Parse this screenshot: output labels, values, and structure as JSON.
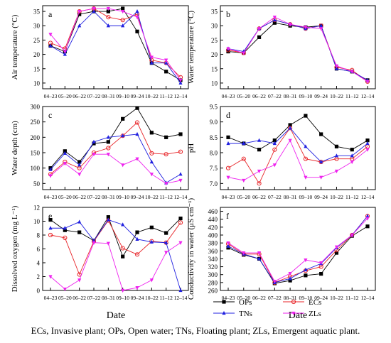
{
  "caption": "ECs, Invasive plant; OPs, Open water; TNs, Floating plant; ZLs, Emergent aquatic plant.",
  "shared_xlabel": "Date",
  "legend": {
    "placement": "bottom-center",
    "items": [
      {
        "name": "OPs",
        "color": "#000000",
        "marker": "square"
      },
      {
        "name": "ECs",
        "color": "#e8262a",
        "marker": "circle"
      },
      {
        "name": "TNs",
        "color": "#2020e0",
        "marker": "triangle"
      },
      {
        "name": "ZLs",
        "color": "#ee22ee",
        "marker": "triangle-down"
      }
    ]
  },
  "chart_data": [
    {
      "type": "line",
      "panel": "a",
      "ylabel": "Air temperature (°C)",
      "ylim": [
        8,
        37
      ],
      "yticks": [
        10,
        15,
        20,
        25,
        30,
        35
      ],
      "categories": [
        "04–23",
        "05–20",
        "06–22",
        "07–22",
        "08–31",
        "09–10",
        "09–24",
        "10–22",
        "11–12",
        "12–14"
      ],
      "series": [
        {
          "name": "OPs",
          "values": [
            23,
            21,
            34,
            35,
            35,
            36,
            28,
            17,
            14,
            11
          ]
        },
        {
          "name": "ECs",
          "values": [
            24,
            22,
            35,
            36,
            33,
            32,
            34,
            18,
            17,
            12
          ]
        },
        {
          "name": "TNs",
          "values": [
            23,
            20,
            30,
            35,
            30,
            30,
            35,
            17,
            17,
            10
          ]
        },
        {
          "name": "ZLs",
          "values": [
            27,
            21,
            35,
            36,
            36,
            35,
            33,
            19,
            18,
            11
          ]
        }
      ]
    },
    {
      "type": "line",
      "panel": "b",
      "ylabel": "Water temperature (°C)",
      "ylim": [
        8,
        37
      ],
      "yticks": [
        10,
        15,
        20,
        25,
        30,
        35
      ],
      "categories": [
        "04–23",
        "05–20",
        "06–22",
        "07–22",
        "08–31",
        "09–10",
        "09–24",
        "10–22",
        "11–12",
        "12–14"
      ],
      "series": [
        {
          "name": "OPs",
          "values": [
            21,
            20.5,
            26,
            31,
            30,
            29.5,
            30,
            15,
            14,
            11
          ]
        },
        {
          "name": "ECs",
          "values": [
            21.5,
            20.5,
            29,
            32,
            30.5,
            29,
            30,
            15.5,
            14.5,
            10.5
          ]
        },
        {
          "name": "TNs",
          "values": [
            22,
            21,
            29,
            32,
            30.5,
            29,
            30,
            15,
            14,
            11
          ]
        },
        {
          "name": "ZLs",
          "values": [
            22,
            20.5,
            29,
            33,
            30.5,
            29.5,
            29,
            16,
            14,
            10.5
          ]
        }
      ]
    },
    {
      "type": "line",
      "panel": "c",
      "ylabel": "Water depth (cm)",
      "ylim": [
        30,
        300
      ],
      "yticks": [
        50,
        100,
        150,
        200,
        250,
        300
      ],
      "categories": [
        "04–23",
        "05–20",
        "06–22",
        "07–22",
        "08–31",
        "09–10",
        "09–24",
        "10–22",
        "11–12",
        "12–14"
      ],
      "series": [
        {
          "name": "OPs",
          "values": [
            100,
            155,
            120,
            180,
            185,
            260,
            295,
            215,
            200,
            210
          ]
        },
        {
          "name": "ECs",
          "values": [
            80,
            120,
            100,
            150,
            165,
            205,
            248,
            148,
            145,
            153
          ]
        },
        {
          "name": "TNs",
          "values": [
            95,
            148,
            110,
            185,
            200,
            205,
            210,
            120,
            52,
            80
          ]
        },
        {
          "name": "ZLs",
          "values": [
            75,
            115,
            80,
            145,
            145,
            110,
            130,
            80,
            50,
            60
          ]
        }
      ]
    },
    {
      "type": "line",
      "panel": "d",
      "ylabel": "pH",
      "ylim": [
        6.8,
        9.5
      ],
      "yticks": [
        7.0,
        7.5,
        8.0,
        8.5,
        9.0,
        9.5
      ],
      "categories": [
        "04–23",
        "05–20",
        "06–22",
        "07–22",
        "08–31",
        "09–10",
        "09–24",
        "10–22",
        "11–12",
        "12–14"
      ],
      "series": [
        {
          "name": "OPs",
          "values": [
            8.5,
            8.3,
            8.1,
            8.4,
            8.9,
            9.2,
            8.6,
            8.2,
            8.1,
            8.4
          ]
        },
        {
          "name": "ECs",
          "values": [
            7.5,
            7.8,
            7.0,
            8.1,
            8.8,
            7.8,
            7.7,
            7.8,
            7.8,
            8.2
          ]
        },
        {
          "name": "TNs",
          "values": [
            8.3,
            8.3,
            8.4,
            8.3,
            8.8,
            8.2,
            7.7,
            7.9,
            7.9,
            8.3
          ]
        },
        {
          "name": "ZLs",
          "values": [
            7.2,
            7.1,
            7.4,
            7.6,
            8.4,
            7.2,
            7.2,
            7.4,
            7.7,
            8.1
          ]
        }
      ]
    },
    {
      "type": "line",
      "panel": "e",
      "ylabel": "Dissolved oxygen (mg L⁻¹)",
      "ylim": [
        0,
        12
      ],
      "yticks": [
        0,
        2,
        4,
        6,
        8,
        10,
        12
      ],
      "categories": [
        "04–23",
        "05–20",
        "06–22",
        "07–22",
        "08–31",
        "09–10",
        "09–24",
        "10–22",
        "11–12",
        "12–14"
      ],
      "series": [
        {
          "name": "OPs",
          "values": [
            10.2,
            8.7,
            8.4,
            7.2,
            10.6,
            4.9,
            8.4,
            9.1,
            8.3,
            10.4
          ]
        },
        {
          "name": "ECs",
          "values": [
            8.0,
            7.6,
            2.3,
            7.1,
            10.1,
            6.1,
            5.2,
            7.1,
            6.9,
            9.8
          ]
        },
        {
          "name": "TNs",
          "values": [
            9.0,
            9.0,
            9.9,
            7.2,
            10.2,
            9.5,
            7.4,
            7.0,
            6.9,
            0.0
          ]
        },
        {
          "name": "ZLs",
          "values": [
            2.0,
            0.2,
            1.5,
            6.9,
            6.8,
            0.0,
            0.4,
            1.5,
            5.5,
            6.9
          ]
        }
      ]
    },
    {
      "type": "line",
      "panel": "f",
      "ylabel": "Conductivity in water (μS cm⁻¹)",
      "ylim": [
        260,
        470
      ],
      "yticks": [
        260,
        280,
        300,
        320,
        340,
        360,
        380,
        400,
        420,
        440,
        460
      ],
      "categories": [
        "04–23",
        "05–20",
        "06–22",
        "07–22",
        "08–31",
        "09–10",
        "09–24",
        "10–22",
        "11–12",
        "12–14"
      ],
      "series": [
        {
          "name": "OPs",
          "values": [
            368,
            350,
            340,
            278,
            285,
            298,
            302,
            355,
            398,
            422
          ]
        },
        {
          "name": "ECs",
          "values": [
            378,
            352,
            352,
            280,
            295,
            310,
            320,
            362,
            400,
            448
          ]
        },
        {
          "name": "TNs",
          "values": [
            372,
            352,
            340,
            280,
            290,
            312,
            328,
            368,
            400,
            448
          ]
        },
        {
          "name": "ZLs",
          "values": [
            380,
            355,
            355,
            283,
            303,
            337,
            330,
            370,
            400,
            442
          ]
        }
      ]
    }
  ]
}
